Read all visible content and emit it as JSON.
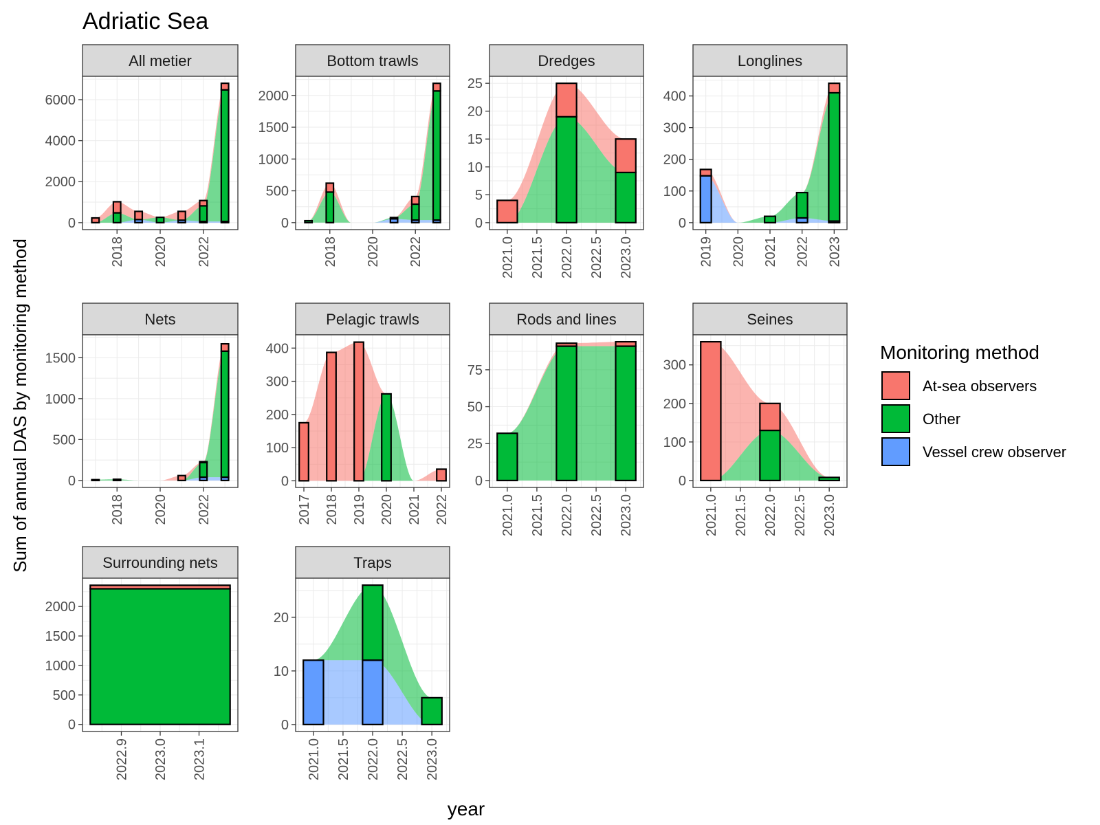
{
  "chart_data": {
    "type": "bar",
    "title": "Adriatic Sea",
    "xlabel": "year",
    "ylabel": "Sum of annual DAS by monitoring method",
    "legend": {
      "title": "Monitoring method",
      "position": "right",
      "entries": [
        {
          "name": "At-sea observers",
          "color": "#F8766D"
        },
        {
          "name": "Other",
          "color": "#00BA38"
        },
        {
          "name": "Vessel crew observer",
          "color": "#619CFF"
        }
      ]
    },
    "grid": true,
    "stacking": "stacked bars with smoothed stacked area ribbons",
    "panels": [
      {
        "name": "All metier",
        "xlim": [
          2016.4,
          2023.6
        ],
        "ylim": [
          -340,
          7140
        ],
        "xticks": [
          {
            "v": 2018,
            "label": "2018"
          },
          {
            "v": 2020,
            "label": "2020"
          },
          {
            "v": 2022,
            "label": "2022"
          }
        ],
        "yticks": [
          {
            "v": 0,
            "label": "0"
          },
          {
            "v": 2000,
            "label": "2000"
          },
          {
            "v": 4000,
            "label": "4000"
          },
          {
            "v": 6000,
            "label": "6000"
          }
        ],
        "x": [
          2017,
          2018,
          2019,
          2020,
          2021,
          2022,
          2023
        ],
        "series": {
          "Vessel crew observer": [
            0,
            0,
            150,
            0,
            120,
            60,
            60
          ],
          "Other": [
            0,
            480,
            0,
            260,
            0,
            760,
            6420
          ],
          "At-sea observers": [
            230,
            540,
            400,
            0,
            430,
            260,
            320
          ]
        }
      },
      {
        "name": "Bottom trawls",
        "xlim": [
          2016.4,
          2023.6
        ],
        "ylim": [
          -110,
          2300
        ],
        "xticks": [
          {
            "v": 2018,
            "label": "2018"
          },
          {
            "v": 2020,
            "label": "2020"
          },
          {
            "v": 2022,
            "label": "2022"
          }
        ],
        "yticks": [
          {
            "v": 0,
            "label": "0"
          },
          {
            "v": 500,
            "label": "500"
          },
          {
            "v": 1000,
            "label": "1000"
          },
          {
            "v": 1500,
            "label": "1500"
          },
          {
            "v": 2000,
            "label": "2000"
          }
        ],
        "x": [
          2017,
          2018,
          2019,
          2020,
          2021,
          2022,
          2023
        ],
        "series": {
          "Vessel crew observer": [
            0,
            0,
            0,
            0,
            60,
            40,
            40
          ],
          "Other": [
            30,
            480,
            0,
            0,
            20,
            250,
            2030
          ],
          "At-sea observers": [
            0,
            140,
            0,
            0,
            0,
            120,
            120
          ]
        }
      },
      {
        "name": "Dredges",
        "xlim": [
          2020.7,
          2023.3
        ],
        "ylim": [
          -1.25,
          26.25
        ],
        "xticks": [
          {
            "v": 2021.0,
            "label": "2021.0"
          },
          {
            "v": 2021.5,
            "label": "2021.5"
          },
          {
            "v": 2022.0,
            "label": "2022.0"
          },
          {
            "v": 2022.5,
            "label": "2022.5"
          },
          {
            "v": 2023.0,
            "label": "2023.0"
          }
        ],
        "yticks": [
          {
            "v": 0,
            "label": "0"
          },
          {
            "v": 5,
            "label": "5"
          },
          {
            "v": 10,
            "label": "10"
          },
          {
            "v": 15,
            "label": "15"
          },
          {
            "v": 20,
            "label": "20"
          },
          {
            "v": 25,
            "label": "25"
          }
        ],
        "x": [
          2021,
          2022,
          2023
        ],
        "series": {
          "Vessel crew observer": [
            0,
            0,
            0
          ],
          "Other": [
            0,
            19,
            9
          ],
          "At-sea observers": [
            4,
            6,
            6
          ]
        }
      },
      {
        "name": "Longlines",
        "xlim": [
          2018.6,
          2023.4
        ],
        "ylim": [
          -22,
          462
        ],
        "xticks": [
          {
            "v": 2019,
            "label": "2019"
          },
          {
            "v": 2020,
            "label": "2020"
          },
          {
            "v": 2021,
            "label": "2021"
          },
          {
            "v": 2022,
            "label": "2022"
          },
          {
            "v": 2023,
            "label": "2023"
          }
        ],
        "yticks": [
          {
            "v": 0,
            "label": "0"
          },
          {
            "v": 100,
            "label": "100"
          },
          {
            "v": 200,
            "label": "200"
          },
          {
            "v": 300,
            "label": "300"
          },
          {
            "v": 400,
            "label": "400"
          }
        ],
        "x": [
          2019,
          2020,
          2021,
          2022,
          2023
        ],
        "series": {
          "Vessel crew observer": [
            148,
            0,
            0,
            15,
            5
          ],
          "Other": [
            0,
            0,
            20,
            80,
            405
          ],
          "At-sea observers": [
            20,
            0,
            0,
            0,
            30
          ]
        }
      },
      {
        "name": "Nets",
        "xlim": [
          2016.4,
          2023.6
        ],
        "ylim": [
          -85,
          1780
        ],
        "xticks": [
          {
            "v": 2018,
            "label": "2018"
          },
          {
            "v": 2020,
            "label": "2020"
          },
          {
            "v": 2022,
            "label": "2022"
          }
        ],
        "yticks": [
          {
            "v": 0,
            "label": "0"
          },
          {
            "v": 500,
            "label": "500"
          },
          {
            "v": 1000,
            "label": "1000"
          },
          {
            "v": 1500,
            "label": "1500"
          }
        ],
        "x": [
          2017,
          2018,
          2019,
          2020,
          2021,
          2022,
          2023
        ],
        "series": {
          "Vessel crew observer": [
            0,
            0,
            0,
            0,
            0,
            40,
            40
          ],
          "Other": [
            10,
            15,
            0,
            0,
            0,
            180,
            1540
          ],
          "At-sea observers": [
            0,
            0,
            0,
            0,
            60,
            10,
            90
          ]
        }
      },
      {
        "name": "Pelagic trawls",
        "xlim": [
          2016.7,
          2022.3
        ],
        "ylim": [
          -20,
          440
        ],
        "xticks": [
          {
            "v": 2017,
            "label": "2017"
          },
          {
            "v": 2018,
            "label": "2018"
          },
          {
            "v": 2019,
            "label": "2019"
          },
          {
            "v": 2020,
            "label": "2020"
          },
          {
            "v": 2021,
            "label": "2021"
          },
          {
            "v": 2022,
            "label": "2022"
          }
        ],
        "yticks": [
          {
            "v": 0,
            "label": "0"
          },
          {
            "v": 100,
            "label": "100"
          },
          {
            "v": 200,
            "label": "200"
          },
          {
            "v": 300,
            "label": "300"
          },
          {
            "v": 400,
            "label": "400"
          }
        ],
        "x": [
          2017,
          2018,
          2019,
          2020,
          2021,
          2022
        ],
        "series": {
          "Vessel crew observer": [
            0,
            0,
            0,
            0,
            0,
            0
          ],
          "Other": [
            0,
            0,
            0,
            262,
            0,
            0
          ],
          "At-sea observers": [
            175,
            387,
            418,
            0,
            0,
            35
          ]
        }
      },
      {
        "name": "Rods and lines",
        "xlim": [
          2020.7,
          2023.3
        ],
        "ylim": [
          -4.7,
          98.7
        ],
        "xticks": [
          {
            "v": 2021.0,
            "label": "2021.0"
          },
          {
            "v": 2021.5,
            "label": "2021.5"
          },
          {
            "v": 2022.0,
            "label": "2022.0"
          },
          {
            "v": 2022.5,
            "label": "2022.5"
          },
          {
            "v": 2023.0,
            "label": "2023.0"
          }
        ],
        "yticks": [
          {
            "v": 0,
            "label": "0"
          },
          {
            "v": 25,
            "label": "25"
          },
          {
            "v": 50,
            "label": "50"
          },
          {
            "v": 75,
            "label": "75"
          }
        ],
        "x": [
          2021,
          2022,
          2023
        ],
        "series": {
          "Vessel crew observer": [
            0,
            0,
            0
          ],
          "Other": [
            32,
            91,
            91
          ],
          "At-sea observers": [
            0,
            2,
            3
          ]
        }
      },
      {
        "name": "Seines",
        "xlim": [
          2020.7,
          2023.3
        ],
        "ylim": [
          -18,
          378
        ],
        "xticks": [
          {
            "v": 2021.0,
            "label": "2021.0"
          },
          {
            "v": 2021.5,
            "label": "2021.5"
          },
          {
            "v": 2022.0,
            "label": "2022.0"
          },
          {
            "v": 2022.5,
            "label": "2022.5"
          },
          {
            "v": 2023.0,
            "label": "2023.0"
          }
        ],
        "yticks": [
          {
            "v": 0,
            "label": "0"
          },
          {
            "v": 100,
            "label": "100"
          },
          {
            "v": 200,
            "label": "200"
          },
          {
            "v": 300,
            "label": "300"
          }
        ],
        "x": [
          2021,
          2022,
          2023
        ],
        "series": {
          "Vessel crew observer": [
            0,
            0,
            0
          ],
          "Other": [
            0,
            130,
            8
          ],
          "At-sea observers": [
            360,
            70,
            0
          ]
        }
      },
      {
        "name": "Surrounding nets",
        "xlim": [
          2022.8,
          2023.2
        ],
        "ylim": [
          -120,
          2480
        ],
        "xticks": [
          {
            "v": 2022.9,
            "label": "2022.9"
          },
          {
            "v": 2023.0,
            "label": "2023.0"
          },
          {
            "v": 2023.1,
            "label": "2023.1"
          }
        ],
        "yticks": [
          {
            "v": 0,
            "label": "0"
          },
          {
            "v": 500,
            "label": "500"
          },
          {
            "v": 1000,
            "label": "1000"
          },
          {
            "v": 1500,
            "label": "1500"
          },
          {
            "v": 2000,
            "label": "2000"
          }
        ],
        "x": [
          2023
        ],
        "series": {
          "Vessel crew observer": [
            0
          ],
          "Other": [
            2300
          ],
          "At-sea observers": [
            60
          ]
        }
      },
      {
        "name": "Traps",
        "xlim": [
          2020.7,
          2023.3
        ],
        "ylim": [
          -1.3,
          27.3
        ],
        "xticks": [
          {
            "v": 2021.0,
            "label": "2021.0"
          },
          {
            "v": 2021.5,
            "label": "2021.5"
          },
          {
            "v": 2022.0,
            "label": "2022.0"
          },
          {
            "v": 2022.5,
            "label": "2022.5"
          },
          {
            "v": 2023.0,
            "label": "2023.0"
          }
        ],
        "yticks": [
          {
            "v": 0,
            "label": "0"
          },
          {
            "v": 10,
            "label": "10"
          },
          {
            "v": 20,
            "label": "20"
          }
        ],
        "x": [
          2021,
          2022,
          2023
        ],
        "series": {
          "Vessel crew observer": [
            12,
            12,
            0
          ],
          "Other": [
            0,
            14,
            5
          ],
          "At-sea observers": [
            0,
            0,
            0
          ]
        }
      }
    ]
  }
}
